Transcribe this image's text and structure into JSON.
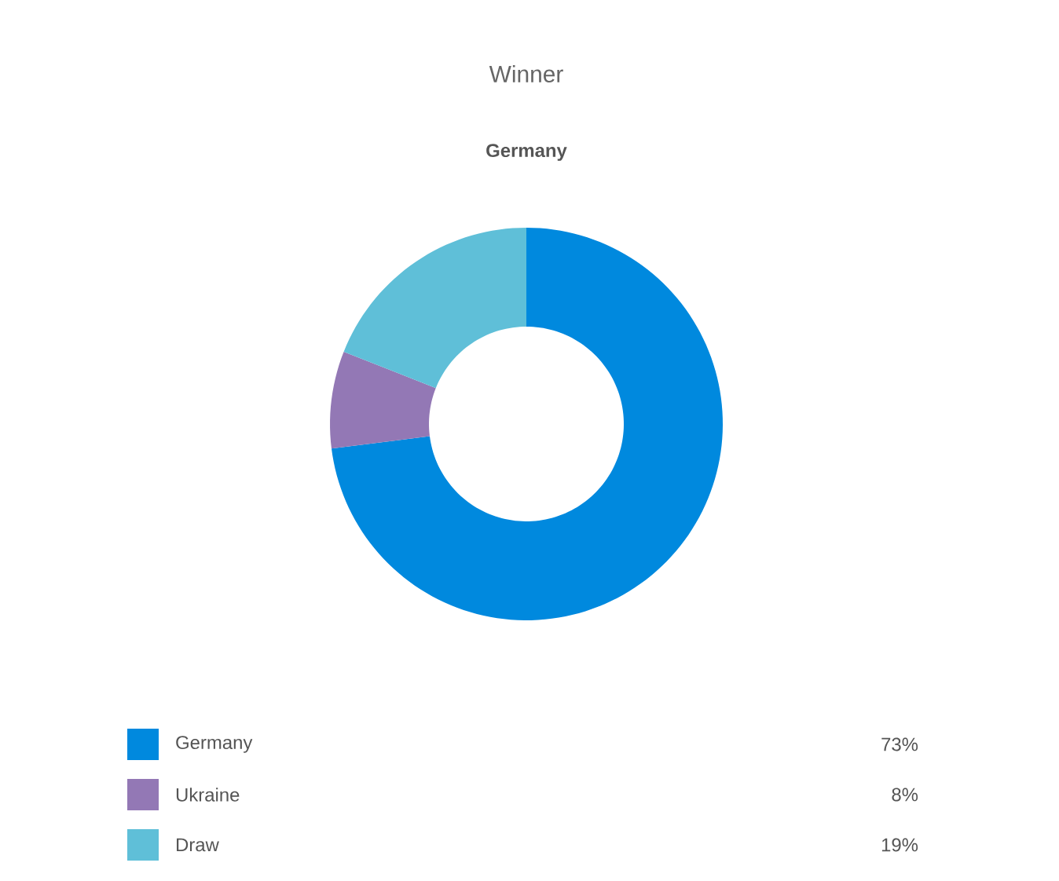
{
  "chart_data": {
    "type": "donut",
    "title": "Winner",
    "subtitle": "Germany",
    "categories": [
      "Germany",
      "Ukraine",
      "Draw"
    ],
    "values": [
      73,
      8,
      19
    ],
    "colors": [
      "#0089de",
      "#9378b5",
      "#5fbfd8"
    ],
    "value_labels": [
      "73%",
      "8%",
      "19%"
    ],
    "legend": "bottom"
  }
}
